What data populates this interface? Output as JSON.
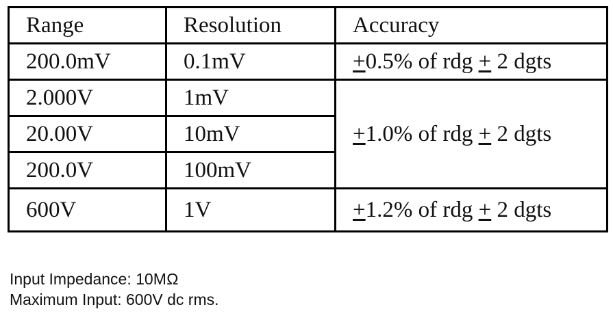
{
  "table": {
    "headers": [
      "Range",
      "Resolution",
      "Accuracy"
    ],
    "rows": [
      {
        "range": "200.0mV",
        "resolution": "0.1mV"
      },
      {
        "range": "2.000V",
        "resolution": "1mV"
      },
      {
        "range": "20.00V",
        "resolution": "10mV"
      },
      {
        "range": "200.0V",
        "resolution": "100mV"
      },
      {
        "range": "600V",
        "resolution": "1V"
      }
    ],
    "accuracy": [
      {
        "pm1": "+",
        "value": "0.5% of rdg ",
        "pm2": "+",
        "digits": " 2 dgts"
      },
      {
        "pm1": "+",
        "value": "1.0% of rdg ",
        "pm2": "+",
        "digits": " 2 dgts"
      },
      {
        "pm1": "+",
        "value": "1.2% of rdg ",
        "pm2": "+",
        "digits": " 2 dgts"
      }
    ]
  },
  "notes": {
    "impedance": "Input Impedance: 10MΩ",
    "max_input": "Maximum Input: 600V dc rms."
  }
}
